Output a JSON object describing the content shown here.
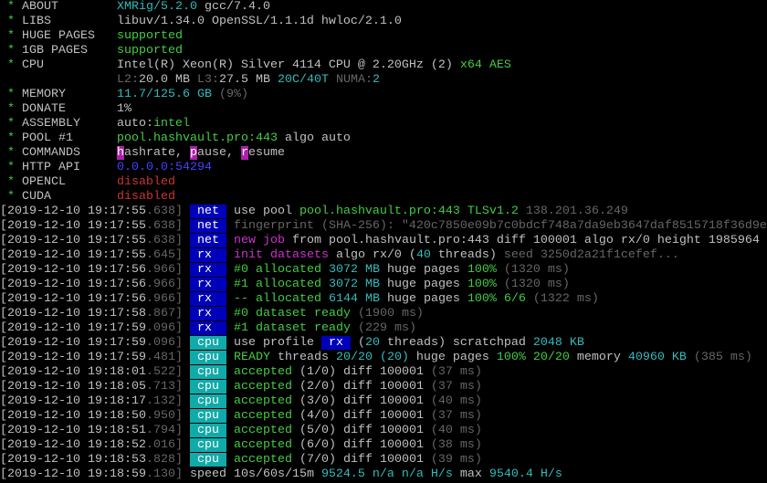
{
  "lines": [
    [
      {
        "text": " * ",
        "color": "#44cc44"
      },
      {
        "text": "ABOUT        ",
        "color": "#c0c0c0"
      },
      {
        "text": "XMRig/5.2.0",
        "color": "#33bbbb"
      },
      {
        "text": " gcc/7.4.0",
        "color": "#c0c0c0"
      }
    ],
    [
      {
        "text": " * ",
        "color": "#44cc44"
      },
      {
        "text": "LIBS         ",
        "color": "#c0c0c0"
      },
      {
        "text": "libuv/1.34.0 OpenSSL/1.1.1d hwloc/2.1.0",
        "color": "#c0c0c0"
      }
    ],
    [
      {
        "text": " * ",
        "color": "#44cc44"
      },
      {
        "text": "HUGE PAGES   ",
        "color": "#c0c0c0"
      },
      {
        "text": "supported",
        "color": "#44cc44"
      }
    ],
    [
      {
        "text": " * ",
        "color": "#44cc44"
      },
      {
        "text": "1GB PAGES    ",
        "color": "#c0c0c0"
      },
      {
        "text": "supported",
        "color": "#44cc44"
      }
    ],
    [
      {
        "text": " * ",
        "color": "#44cc44"
      },
      {
        "text": "CPU          ",
        "color": "#c0c0c0"
      },
      {
        "text": "Intel(R) Xeon(R) Silver 4114 CPU @ 2.20GHz (2) ",
        "color": "#c0c0c0"
      },
      {
        "text": "x64 AES",
        "color": "#44cc44"
      }
    ],
    [
      {
        "text": "                ",
        "color": "#c0c0c0"
      },
      {
        "text": "L2:",
        "color": "#666666"
      },
      {
        "text": "20.0 MB ",
        "color": "#c0c0c0"
      },
      {
        "text": "L3:",
        "color": "#666666"
      },
      {
        "text": "27.5 MB ",
        "color": "#c0c0c0"
      },
      {
        "text": "20C/40T",
        "color": "#33bbbb"
      },
      {
        "text": " NUMA:",
        "color": "#666666"
      },
      {
        "text": "2",
        "color": "#33bbbb"
      }
    ],
    [
      {
        "text": " * ",
        "color": "#44cc44"
      },
      {
        "text": "MEMORY       ",
        "color": "#c0c0c0"
      },
      {
        "text": "11.7/125.6 GB",
        "color": "#33bbbb"
      },
      {
        "text": " (9%)",
        "color": "#666666"
      }
    ],
    [
      {
        "text": " * ",
        "color": "#44cc44"
      },
      {
        "text": "DONATE       ",
        "color": "#c0c0c0"
      },
      {
        "text": "1%",
        "color": "#c0c0c0"
      }
    ],
    [
      {
        "text": " * ",
        "color": "#44cc44"
      },
      {
        "text": "ASSEMBLY     ",
        "color": "#c0c0c0"
      },
      {
        "text": "auto:",
        "color": "#c0c0c0"
      },
      {
        "text": "intel",
        "color": "#44cc44"
      }
    ],
    [
      {
        "text": " * ",
        "color": "#44cc44"
      },
      {
        "text": "POOL #1      ",
        "color": "#c0c0c0"
      },
      {
        "text": "pool.hashvault.pro:443",
        "color": "#44cc44"
      },
      {
        "text": " algo auto",
        "color": "#c0c0c0"
      }
    ],
    [
      {
        "text": " * ",
        "color": "#44cc44"
      },
      {
        "text": "COMMANDS     ",
        "color": "#c0c0c0"
      },
      {
        "text": "h",
        "color": "#ffffff",
        "background": "#aa22aa"
      },
      {
        "text": "ashrate, ",
        "color": "#c0c0c0"
      },
      {
        "text": "p",
        "color": "#ffffff",
        "background": "#aa22aa"
      },
      {
        "text": "ause, ",
        "color": "#c0c0c0"
      },
      {
        "text": "r",
        "color": "#ffffff",
        "background": "#aa22aa"
      },
      {
        "text": "esume",
        "color": "#c0c0c0"
      }
    ],
    [
      {
        "text": " * ",
        "color": "#44cc44"
      },
      {
        "text": "HTTP API     ",
        "color": "#c0c0c0"
      },
      {
        "text": "0.0.0.0:54294",
        "color": "#4444ff"
      }
    ],
    [
      {
        "text": " * ",
        "color": "#44cc44"
      },
      {
        "text": "OPENCL       ",
        "color": "#c0c0c0"
      },
      {
        "text": "disabled",
        "color": "#cc3333"
      }
    ],
    [
      {
        "text": " * ",
        "color": "#44cc44"
      },
      {
        "text": "CUDA         ",
        "color": "#c0c0c0"
      },
      {
        "text": "disabled",
        "color": "#cc3333"
      }
    ],
    [
      {
        "text": "[2019-12-10 19:17:55",
        "color": "#c0c0c0"
      },
      {
        "text": ".638]",
        "color": "#666666"
      },
      {
        "text": " ",
        "color": "#c0c0c0"
      },
      {
        "text": " net ",
        "color": "#ffffff",
        "background": "#0000bb"
      },
      {
        "text": " use pool ",
        "color": "#c0c0c0"
      },
      {
        "text": "pool.hashvault.pro:443 TLSv1.2",
        "color": "#44cc44"
      },
      {
        "text": " 138.201.36.249",
        "color": "#666666"
      }
    ],
    [
      {
        "text": "[2019-12-10 19:17:55",
        "color": "#c0c0c0"
      },
      {
        "text": ".638]",
        "color": "#666666"
      },
      {
        "text": " ",
        "color": "#c0c0c0"
      },
      {
        "text": " net ",
        "color": "#ffffff",
        "background": "#0000bb"
      },
      {
        "text": " ",
        "color": "#c0c0c0"
      },
      {
        "text": "fingerprint (SHA-256): \"420c7850e09b7c0bdcf748a7da9eb3647daf8515718f36d9e",
        "color": "#666666"
      }
    ],
    [
      {
        "text": "[2019-12-10 19:17:55",
        "color": "#c0c0c0"
      },
      {
        "text": ".638]",
        "color": "#666666"
      },
      {
        "text": " ",
        "color": "#c0c0c0"
      },
      {
        "text": " net ",
        "color": "#ffffff",
        "background": "#0000bb"
      },
      {
        "text": " ",
        "color": "#c0c0c0"
      },
      {
        "text": "new job",
        "color": "#cc33cc"
      },
      {
        "text": " from pool.hashvault.pro:443 diff 100001 algo rx/0 height 1985964",
        "color": "#c0c0c0"
      }
    ],
    [
      {
        "text": "[2019-12-10 19:17:55",
        "color": "#c0c0c0"
      },
      {
        "text": ".645]",
        "color": "#666666"
      },
      {
        "text": " ",
        "color": "#c0c0c0"
      },
      {
        "text": " rx  ",
        "color": "#ffffff",
        "background": "#0000bb"
      },
      {
        "text": " ",
        "color": "#c0c0c0"
      },
      {
        "text": "init datasets",
        "color": "#cc33cc"
      },
      {
        "text": " algo rx/0 (",
        "color": "#c0c0c0"
      },
      {
        "text": "40",
        "color": "#33bbbb"
      },
      {
        "text": " threads)",
        "color": "#c0c0c0"
      },
      {
        "text": " seed 3250d2a21f1cefef...",
        "color": "#666666"
      }
    ],
    [
      {
        "text": "[2019-12-10 19:17:56",
        "color": "#c0c0c0"
      },
      {
        "text": ".966]",
        "color": "#666666"
      },
      {
        "text": " ",
        "color": "#c0c0c0"
      },
      {
        "text": " rx  ",
        "color": "#ffffff",
        "background": "#0000bb"
      },
      {
        "text": " ",
        "color": "#c0c0c0"
      },
      {
        "text": "#0 allocated ",
        "color": "#44cc44"
      },
      {
        "text": "3072 MB",
        "color": "#33bbbb"
      },
      {
        "text": " huge pages ",
        "color": "#c0c0c0"
      },
      {
        "text": "100%",
        "color": "#44cc44"
      },
      {
        "text": " (1320 ms)",
        "color": "#666666"
      }
    ],
    [
      {
        "text": "[2019-12-10 19:17:56",
        "color": "#c0c0c0"
      },
      {
        "text": ".966]",
        "color": "#666666"
      },
      {
        "text": " ",
        "color": "#c0c0c0"
      },
      {
        "text": " rx  ",
        "color": "#ffffff",
        "background": "#0000bb"
      },
      {
        "text": " ",
        "color": "#c0c0c0"
      },
      {
        "text": "#1 allocated ",
        "color": "#44cc44"
      },
      {
        "text": "3072 MB",
        "color": "#33bbbb"
      },
      {
        "text": " huge pages ",
        "color": "#c0c0c0"
      },
      {
        "text": "100%",
        "color": "#44cc44"
      },
      {
        "text": " (1320 ms)",
        "color": "#666666"
      }
    ],
    [
      {
        "text": "[2019-12-10 19:17:56",
        "color": "#c0c0c0"
      },
      {
        "text": ".966]",
        "color": "#666666"
      },
      {
        "text": " ",
        "color": "#c0c0c0"
      },
      {
        "text": " rx  ",
        "color": "#ffffff",
        "background": "#0000bb"
      },
      {
        "text": " ",
        "color": "#c0c0c0"
      },
      {
        "text": "-- allocated ",
        "color": "#44cc44"
      },
      {
        "text": "6144 MB",
        "color": "#33bbbb"
      },
      {
        "text": " huge pages ",
        "color": "#c0c0c0"
      },
      {
        "text": "100% 6/6",
        "color": "#44cc44"
      },
      {
        "text": " (1322 ms)",
        "color": "#666666"
      }
    ],
    [
      {
        "text": "[2019-12-10 19:17:58",
        "color": "#c0c0c0"
      },
      {
        "text": ".867]",
        "color": "#666666"
      },
      {
        "text": " ",
        "color": "#c0c0c0"
      },
      {
        "text": " rx  ",
        "color": "#ffffff",
        "background": "#0000bb"
      },
      {
        "text": " ",
        "color": "#c0c0c0"
      },
      {
        "text": "#0 dataset ready",
        "color": "#44cc44"
      },
      {
        "text": " (1900 ms)",
        "color": "#666666"
      }
    ],
    [
      {
        "text": "[2019-12-10 19:17:59",
        "color": "#c0c0c0"
      },
      {
        "text": ".096]",
        "color": "#666666"
      },
      {
        "text": " ",
        "color": "#c0c0c0"
      },
      {
        "text": " rx  ",
        "color": "#ffffff",
        "background": "#0000bb"
      },
      {
        "text": " ",
        "color": "#c0c0c0"
      },
      {
        "text": "#1 dataset ready",
        "color": "#44cc44"
      },
      {
        "text": " (229 ms)",
        "color": "#666666"
      }
    ],
    [
      {
        "text": "[2019-12-10 19:17:59",
        "color": "#c0c0c0"
      },
      {
        "text": ".096]",
        "color": "#666666"
      },
      {
        "text": " ",
        "color": "#c0c0c0"
      },
      {
        "text": " cpu ",
        "color": "#ffffff",
        "background": "#11aaaa"
      },
      {
        "text": " use profile ",
        "color": "#c0c0c0"
      },
      {
        "text": " rx ",
        "color": "#ffffff",
        "background": "#0000bb"
      },
      {
        "text": " (",
        "color": "#c0c0c0"
      },
      {
        "text": "20",
        "color": "#33bbbb"
      },
      {
        "text": " threads) scratchpad ",
        "color": "#c0c0c0"
      },
      {
        "text": "2048 KB",
        "color": "#33bbbb"
      }
    ],
    [
      {
        "text": "[2019-12-10 19:17:59",
        "color": "#c0c0c0"
      },
      {
        "text": ".481]",
        "color": "#666666"
      },
      {
        "text": " ",
        "color": "#c0c0c0"
      },
      {
        "text": " cpu ",
        "color": "#ffffff",
        "background": "#11aaaa"
      },
      {
        "text": " ",
        "color": "#c0c0c0"
      },
      {
        "text": "READY",
        "color": "#44cc44"
      },
      {
        "text": " threads ",
        "color": "#c0c0c0"
      },
      {
        "text": "20/20 (20)",
        "color": "#33bbbb"
      },
      {
        "text": " huge pages ",
        "color": "#c0c0c0"
      },
      {
        "text": "100% 20/20",
        "color": "#44cc44"
      },
      {
        "text": " memory ",
        "color": "#c0c0c0"
      },
      {
        "text": "40960 KB",
        "color": "#33bbbb"
      },
      {
        "text": " (385 ms)",
        "color": "#666666"
      }
    ],
    [
      {
        "text": "[2019-12-10 19:18:01",
        "color": "#c0c0c0"
      },
      {
        "text": ".522]",
        "color": "#666666"
      },
      {
        "text": " ",
        "color": "#c0c0c0"
      },
      {
        "text": " cpu ",
        "color": "#ffffff",
        "background": "#11aaaa"
      },
      {
        "text": " ",
        "color": "#c0c0c0"
      },
      {
        "text": "accepted",
        "color": "#44cc44"
      },
      {
        "text": " (1/0) diff 100001",
        "color": "#c0c0c0"
      },
      {
        "text": " (37 ms)",
        "color": "#666666"
      }
    ],
    [
      {
        "text": "[2019-12-10 19:18:05",
        "color": "#c0c0c0"
      },
      {
        "text": ".713]",
        "color": "#666666"
      },
      {
        "text": " ",
        "color": "#c0c0c0"
      },
      {
        "text": " cpu ",
        "color": "#ffffff",
        "background": "#11aaaa"
      },
      {
        "text": " ",
        "color": "#c0c0c0"
      },
      {
        "text": "accepted",
        "color": "#44cc44"
      },
      {
        "text": " (2/0) diff 100001",
        "color": "#c0c0c0"
      },
      {
        "text": " (37 ms)",
        "color": "#666666"
      }
    ],
    [
      {
        "text": "[2019-12-10 19:18:17",
        "color": "#c0c0c0"
      },
      {
        "text": ".132]",
        "color": "#666666"
      },
      {
        "text": " ",
        "color": "#c0c0c0"
      },
      {
        "text": " cpu ",
        "color": "#ffffff",
        "background": "#11aaaa"
      },
      {
        "text": " ",
        "color": "#c0c0c0"
      },
      {
        "text": "accepted",
        "color": "#44cc44"
      },
      {
        "text": " (3/0) diff 100001",
        "color": "#c0c0c0"
      },
      {
        "text": " (40 ms)",
        "color": "#666666"
      }
    ],
    [
      {
        "text": "[2019-12-10 19:18:50",
        "color": "#c0c0c0"
      },
      {
        "text": ".950]",
        "color": "#666666"
      },
      {
        "text": " ",
        "color": "#c0c0c0"
      },
      {
        "text": " cpu ",
        "color": "#ffffff",
        "background": "#11aaaa"
      },
      {
        "text": " ",
        "color": "#c0c0c0"
      },
      {
        "text": "accepted",
        "color": "#44cc44"
      },
      {
        "text": " (4/0) diff 100001",
        "color": "#c0c0c0"
      },
      {
        "text": " (37 ms)",
        "color": "#666666"
      }
    ],
    [
      {
        "text": "[2019-12-10 19:18:51",
        "color": "#c0c0c0"
      },
      {
        "text": ".794]",
        "color": "#666666"
      },
      {
        "text": " ",
        "color": "#c0c0c0"
      },
      {
        "text": " cpu ",
        "color": "#ffffff",
        "background": "#11aaaa"
      },
      {
        "text": " ",
        "color": "#c0c0c0"
      },
      {
        "text": "accepted",
        "color": "#44cc44"
      },
      {
        "text": " (5/0) diff 100001",
        "color": "#c0c0c0"
      },
      {
        "text": " (40 ms)",
        "color": "#666666"
      }
    ],
    [
      {
        "text": "[2019-12-10 19:18:52",
        "color": "#c0c0c0"
      },
      {
        "text": ".016]",
        "color": "#666666"
      },
      {
        "text": " ",
        "color": "#c0c0c0"
      },
      {
        "text": " cpu ",
        "color": "#ffffff",
        "background": "#11aaaa"
      },
      {
        "text": " ",
        "color": "#c0c0c0"
      },
      {
        "text": "accepted",
        "color": "#44cc44"
      },
      {
        "text": " (6/0) diff 100001",
        "color": "#c0c0c0"
      },
      {
        "text": " (38 ms)",
        "color": "#666666"
      }
    ],
    [
      {
        "text": "[2019-12-10 19:18:53",
        "color": "#c0c0c0"
      },
      {
        "text": ".828]",
        "color": "#666666"
      },
      {
        "text": " ",
        "color": "#c0c0c0"
      },
      {
        "text": " cpu ",
        "color": "#ffffff",
        "background": "#11aaaa"
      },
      {
        "text": " ",
        "color": "#c0c0c0"
      },
      {
        "text": "accepted",
        "color": "#44cc44"
      },
      {
        "text": " (7/0) diff 100001",
        "color": "#c0c0c0"
      },
      {
        "text": " (39 ms)",
        "color": "#666666"
      }
    ],
    [
      {
        "text": "[2019-12-10 19:18:59",
        "color": "#c0c0c0"
      },
      {
        "text": ".130]",
        "color": "#666666"
      },
      {
        "text": " speed 10s/60s/15m ",
        "color": "#c0c0c0"
      },
      {
        "text": "9524.5 n/a n/a H/s",
        "color": "#33bbbb"
      },
      {
        "text": " max ",
        "color": "#c0c0c0"
      },
      {
        "text": "9540.4 H/s",
        "color": "#33bbbb"
      }
    ]
  ]
}
